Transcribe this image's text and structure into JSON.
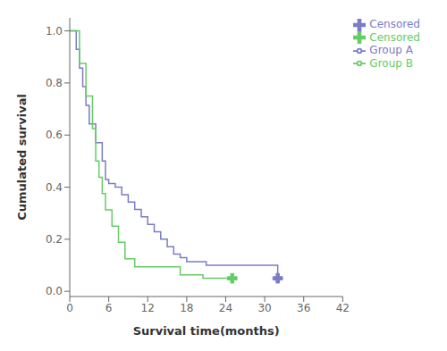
{
  "chart_data": {
    "type": "line",
    "title": "",
    "xlabel": "Survival time(months)",
    "ylabel": "Cumulated survival",
    "xlim": [
      0,
      42
    ],
    "ylim": [
      -0.02,
      1.05
    ],
    "xticks": [
      0,
      6,
      12,
      18,
      24,
      30,
      36,
      42
    ],
    "yticks": [
      {
        "value": 0.0,
        "label": "0.0"
      },
      0.2,
      0.4,
      0.6,
      0.8,
      {
        "value": 1.0,
        "label": "1.0"
      }
    ],
    "grid": false,
    "legend": "right",
    "series": [
      {
        "name": "Group A",
        "type": "line",
        "line_style": "step",
        "color": "#7b7bc8",
        "x": [
          0,
          0.5,
          1.0,
          1.5,
          2.0,
          2.5,
          3.0,
          4.0,
          5.0,
          5.5,
          6.0,
          7.0,
          8.0,
          9.0,
          10.0,
          11.0,
          12.0,
          13.0,
          14.0,
          15.0,
          16.0,
          17.0,
          18.0,
          21.0,
          32.0
        ],
        "values": [
          1.0,
          1.0,
          0.929,
          0.857,
          0.786,
          0.714,
          0.643,
          0.571,
          0.5,
          0.429,
          0.414,
          0.4,
          0.371,
          0.343,
          0.314,
          0.286,
          0.257,
          0.229,
          0.2,
          0.171,
          0.143,
          0.129,
          0.114,
          0.1,
          0.05
        ]
      },
      {
        "name": "Group B",
        "type": "line",
        "line_style": "step",
        "color": "#66cc66",
        "x": [
          0,
          0.3,
          1.5,
          2.5,
          3.5,
          4.0,
          4.5,
          5.0,
          5.5,
          6.5,
          7.5,
          8.5,
          10.0,
          17.0,
          20.5,
          25.0
        ],
        "values": [
          1.0,
          1.0,
          0.875,
          0.75,
          0.625,
          0.5,
          0.438,
          0.375,
          0.313,
          0.25,
          0.188,
          0.125,
          0.094,
          0.063,
          0.05,
          0.05
        ]
      },
      {
        "name": "Censored",
        "type": "scatter",
        "marker": "plus",
        "color": "#7b7bc8",
        "x": [
          32.0
        ],
        "values": [
          0.05
        ]
      },
      {
        "name": "Censored",
        "type": "scatter",
        "marker": "plus",
        "color": "#66cc66",
        "x": [
          25.0
        ],
        "values": [
          0.05
        ]
      }
    ]
  }
}
